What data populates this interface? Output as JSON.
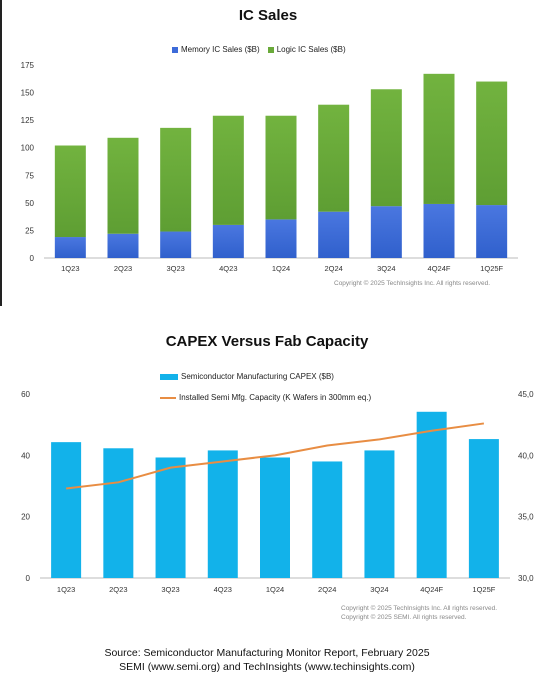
{
  "chart_data": [
    {
      "type": "bar",
      "stacked": true,
      "title": "IC Sales",
      "categories": [
        "1Q23",
        "2Q23",
        "3Q23",
        "4Q23",
        "1Q24",
        "2Q24",
        "3Q24",
        "4Q24F",
        "1Q25F"
      ],
      "series": [
        {
          "name": "Memory IC Sales ($B)",
          "color": "#3d6bd9",
          "values": [
            19,
            22,
            24,
            30,
            35,
            42,
            47,
            49,
            48
          ]
        },
        {
          "name": "Logic IC Sales ($B)",
          "color": "#6aaa3a",
          "values": [
            83,
            87,
            94,
            99,
            94,
            97,
            106,
            118,
            112
          ]
        }
      ],
      "ylim": [
        0,
        175
      ],
      "yticks": [
        0,
        25,
        50,
        75,
        100,
        125,
        150,
        175
      ],
      "legend": "top-center",
      "grid": false,
      "copyright": "Copyright © 2025 TechInsights Inc.  All rights reserved."
    },
    {
      "type": "bar+line",
      "title": "CAPEX Versus Fab Capacity",
      "categories": [
        "1Q23",
        "2Q23",
        "3Q23",
        "4Q23",
        "1Q24",
        "2Q24",
        "3Q24",
        "4Q24F",
        "1Q25F"
      ],
      "series": [
        {
          "name": "Semiconductor Manufacturing CAPEX ($B)",
          "kind": "bar",
          "axis": "left",
          "color": "#12b2ea",
          "values": [
            44.3,
            42.3,
            39.3,
            41.6,
            39.3,
            38.0,
            41.6,
            54.2,
            45.3
          ]
        },
        {
          "name": "Installed Semi Mfg. Capacity (K Wafers in 300mm eq.)",
          "kind": "line",
          "axis": "right",
          "color": "#e88d43",
          "values": [
            37300,
            37800,
            39000,
            39500,
            40000,
            40800,
            41300,
            42000,
            42600
          ]
        }
      ],
      "ylim": [
        0,
        60
      ],
      "yticks": [
        0,
        20,
        40,
        60
      ],
      "y2lim": [
        30000,
        45000
      ],
      "y2ticks": [
        "30,0",
        "35,0",
        "40,0",
        "45,0"
      ],
      "legend": "top-center",
      "grid": false,
      "copyright": [
        "Copyright © 2025 TechInsights Inc.  All rights reserved.",
        "Copyright © 2025 SEMI.  All rights reserved."
      ]
    }
  ],
  "source": {
    "line1": "Source: Semiconductor Manufacturing Monitor Report, February 2025",
    "line2": "SEMI (www.semi.org) and TechInsights (www.techinsights.com)"
  }
}
